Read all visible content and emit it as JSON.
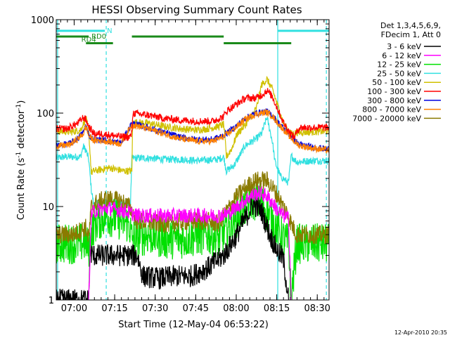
{
  "page": {
    "footer_stamp": "12-Apr-2010 20:35"
  },
  "chart_data": {
    "type": "line",
    "title": "HESSI Observing Summary Count Rates",
    "xlabel": "Start Time (12-May-04 06:53:22)",
    "ylabel": "Count Rate (s",
    "ylabel_sup1": "-1",
    "ylabel_mid": " detector",
    "ylabel_sup2": "-1",
    "ylabel_end": ")",
    "y_scale": "log",
    "ylim": [
      1,
      1000
    ],
    "y_ticks": [
      1,
      10,
      100,
      1000
    ],
    "y_tick_labels": [
      "1",
      "10",
      "100",
      "1000"
    ],
    "xlim_minutes": [
      0,
      101
    ],
    "x_ticks_minutes": [
      6.63,
      21.63,
      36.63,
      51.63,
      66.63,
      81.63,
      96.63
    ],
    "x_tick_labels": [
      "07:00",
      "07:15",
      "07:30",
      "07:45",
      "08:00",
      "08:15",
      "08:30"
    ],
    "legend": {
      "header": [
        "Det 1,3,4,5,6,9,",
        "FDecim 1, Att 0"
      ],
      "placement": "right"
    },
    "flags": [
      {
        "label": "N",
        "color": "#30e0e0",
        "y": 760,
        "intervals": [
          [
            0,
            18
          ],
          [
            82,
            101
          ]
        ]
      },
      {
        "label": "RD0",
        "color": "#1a8a1a",
        "y": 660,
        "intervals": [
          [
            0,
            12
          ],
          [
            28,
            62
          ]
        ]
      },
      {
        "label": "RD4",
        "color": "#1a8a1a",
        "y": 560,
        "intervals": [
          [
            11,
            21
          ],
          [
            62,
            87
          ]
        ]
      }
    ],
    "markers": [
      {
        "kind": "solid",
        "color": "#30e0e0",
        "minutes": 0.5
      },
      {
        "kind": "dashed",
        "color": "#30e0e0",
        "minutes": 18.5
      },
      {
        "kind": "solid",
        "color": "#30e0e0",
        "minutes": 82
      },
      {
        "kind": "dashed",
        "color": "#30e0e0",
        "minutes": 100
      }
    ],
    "series": [
      {
        "name": "3 - 6 keV",
        "color": "#000000",
        "noise": 0.12,
        "x": [
          0,
          12,
          12.5,
          14,
          18,
          22,
          30,
          32,
          38,
          44,
          50,
          56,
          62,
          66,
          70,
          73,
          76,
          79,
          82,
          84,
          86
        ],
        "y": [
          1,
          1,
          3.2,
          3.0,
          3.0,
          3.0,
          3.0,
          1.8,
          1.7,
          1.8,
          1.8,
          2.2,
          3.0,
          4.5,
          7.5,
          10.5,
          9.0,
          5.0,
          3.3,
          2.8,
          1
        ]
      },
      {
        "name": "6 - 12 keV",
        "color": "#ff00ff",
        "noise": 0.08,
        "x": [
          12,
          13,
          15,
          18,
          20,
          25,
          30,
          40,
          50,
          56,
          60,
          64,
          68,
          72,
          75,
          78,
          80,
          82,
          84,
          86,
          87
        ],
        "y": [
          1,
          8.5,
          9.0,
          9.5,
          9.5,
          9.0,
          8.0,
          8.0,
          8.0,
          8.0,
          8.0,
          8.5,
          10.5,
          13.0,
          14.0,
          13.0,
          11.0,
          9.0,
          8.0,
          7.5,
          1
        ]
      },
      {
        "name": "12 - 25 keV",
        "color": "#00e000",
        "noise": 0.22,
        "x": [
          0,
          8,
          11,
          12,
          14,
          18,
          22,
          27,
          28,
          34,
          40,
          46,
          52,
          56,
          60,
          64,
          68,
          72,
          76,
          80,
          84,
          86,
          87,
          89,
          95,
          101
        ],
        "y": [
          4.0,
          4.0,
          4.2,
          3.5,
          6.5,
          8.0,
          7.5,
          6.5,
          4.5,
          5.0,
          4.5,
          4.5,
          4.8,
          5.0,
          4.5,
          6.0,
          8.5,
          12.0,
          11.0,
          7.0,
          4.5,
          4.0,
          1,
          4.0,
          4.0,
          4.0
        ]
      },
      {
        "name": "25 - 50 keV",
        "color": "#30e0e0",
        "noise": 0.04,
        "x": [
          0,
          3,
          6,
          9,
          10,
          11,
          12,
          13,
          14,
          15,
          16,
          18,
          22,
          26,
          27.5,
          28,
          34,
          40,
          46,
          52,
          60,
          62,
          63,
          66,
          70,
          74,
          76,
          78,
          80,
          81,
          83,
          86,
          87,
          89,
          95,
          101
        ],
        "y": [
          33,
          34,
          34,
          34,
          44,
          40,
          32,
          15,
          10,
          11,
          11,
          11,
          11,
          11,
          11,
          33,
          33,
          32,
          32,
          31,
          32,
          34,
          24,
          28,
          45,
          53,
          60,
          90,
          50,
          30,
          21,
          18,
          35,
          30,
          31,
          31
        ]
      },
      {
        "name": "50 - 100 keV",
        "color": "#d0c000",
        "noise": 0.04,
        "x": [
          0,
          6,
          9,
          11,
          12,
          13,
          14,
          17,
          20,
          22,
          25,
          28,
          28.3,
          34,
          40,
          46,
          52,
          56,
          60,
          62,
          63,
          65,
          67,
          70,
          74,
          76,
          78,
          80,
          82,
          84,
          86,
          87,
          89,
          95,
          101
        ],
        "y": [
          64,
          63,
          66,
          88,
          64,
          23,
          24,
          25,
          26,
          25,
          24,
          24,
          80,
          78,
          72,
          68,
          66,
          68,
          72,
          76,
          34,
          42,
          60,
          75,
          110,
          200,
          230,
          180,
          120,
          80,
          64,
          60,
          62,
          63,
          64
        ]
      },
      {
        "name": "100 - 300 keV",
        "color": "#ff0000",
        "noise": 0.04,
        "x": [
          0,
          4,
          8,
          10,
          11,
          12,
          14,
          17,
          20,
          24,
          27,
          28,
          28.3,
          34,
          40,
          46,
          52,
          58,
          62,
          63,
          66,
          70,
          74,
          76,
          78,
          80,
          82,
          84,
          86,
          88,
          90,
          95,
          101
        ],
        "y": [
          68,
          68,
          78,
          90,
          85,
          72,
          60,
          60,
          58,
          56,
          55,
          60,
          100,
          95,
          88,
          84,
          82,
          82,
          92,
          105,
          120,
          145,
          145,
          155,
          175,
          150,
          110,
          80,
          65,
          55,
          70,
          70,
          70
        ]
      },
      {
        "name": "300 - 800 keV",
        "color": "#0000e0",
        "noise": 0.035,
        "x": [
          0,
          5,
          8,
          10,
          11,
          12,
          14,
          17,
          20,
          24,
          28,
          34,
          40,
          46,
          52,
          58,
          62,
          66,
          70,
          74,
          78,
          80,
          82,
          86,
          88,
          90,
          95,
          101
        ],
        "y": [
          45,
          47,
          54,
          62,
          75,
          58,
          52,
          52,
          50,
          48,
          78,
          70,
          62,
          55,
          52,
          52,
          58,
          70,
          88,
          100,
          104,
          95,
          80,
          60,
          52,
          46,
          43,
          41
        ]
      },
      {
        "name": "800 - 7000 keV",
        "color": "#ff8000",
        "noise": 0.035,
        "x": [
          0,
          5,
          8,
          10,
          11,
          12,
          14,
          17,
          20,
          24,
          28,
          34,
          40,
          46,
          52,
          58,
          62,
          66,
          70,
          74,
          78,
          80,
          82,
          86,
          88,
          90,
          95,
          101
        ],
        "y": [
          44,
          46,
          53,
          60,
          72,
          57,
          51,
          51,
          49,
          47,
          75,
          68,
          60,
          53,
          50,
          50,
          56,
          68,
          86,
          98,
          102,
          93,
          78,
          58,
          50,
          45,
          42,
          40
        ]
      },
      {
        "name": "7000 - 20000 keV",
        "color": "#8a7a00",
        "noise": 0.1,
        "x": [
          0,
          6,
          11,
          12,
          13,
          15,
          18,
          20,
          24,
          27,
          30,
          40,
          50,
          56,
          60,
          62,
          66,
          70,
          74,
          78,
          80,
          82,
          84,
          86,
          87,
          89,
          101
        ],
        "y": [
          5.0,
          5.0,
          6.0,
          4.5,
          10.0,
          11.0,
          12.0,
          12.0,
          11.5,
          10.0,
          7.0,
          6.5,
          7.0,
          7.0,
          6.5,
          8.0,
          12.0,
          16.0,
          19.0,
          19.0,
          16.0,
          13.0,
          10.0,
          8.0,
          6.5,
          5.0,
          5.0
        ]
      }
    ]
  }
}
